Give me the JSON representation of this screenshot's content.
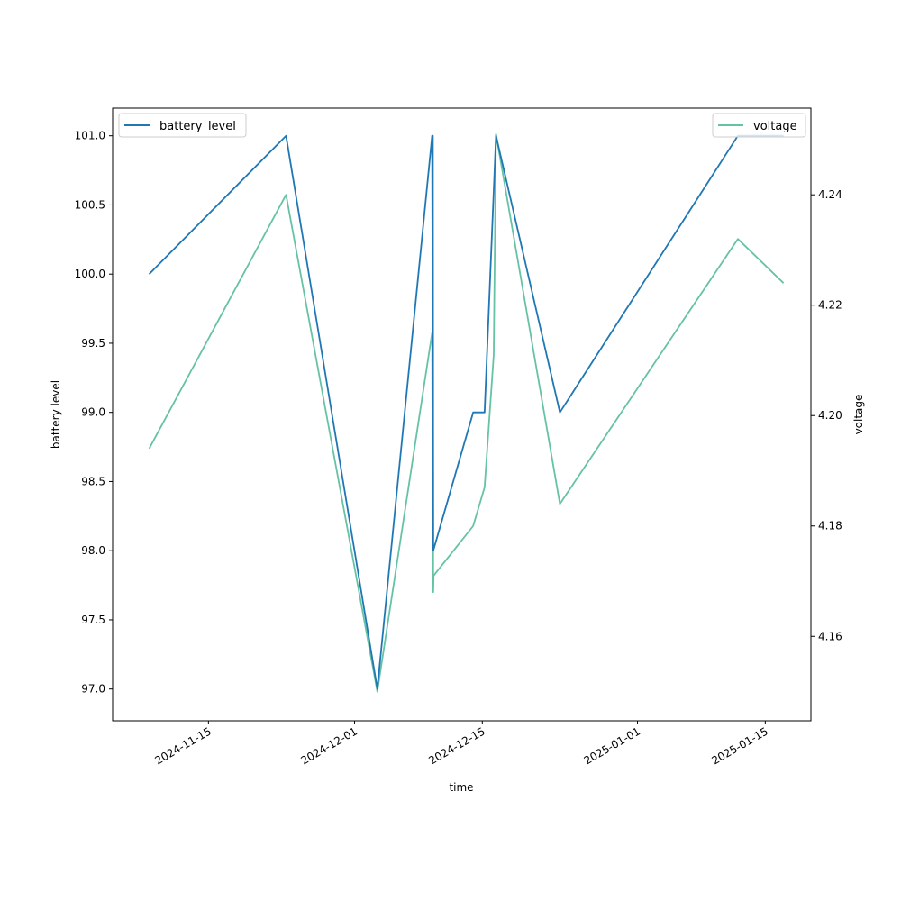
{
  "chart_data": {
    "type": "line",
    "title": "",
    "xlabel": "time",
    "ylabel_left": "battery level",
    "ylabel_right": "voltage",
    "x_tick_labels": [
      "2024-11-15",
      "2024-12-01",
      "2024-12-15",
      "2025-01-01",
      "2025-01-15"
    ],
    "x_ticks": [
      "2024-11-15",
      "2024-12-01",
      "2024-12-15",
      "2025-01-01",
      "2025-01-15"
    ],
    "xlim": [
      "2024-11-04T12:00",
      "2025-01-20T00:00"
    ],
    "ylim_left": [
      96.77,
      101.2
    ],
    "ylim_right": [
      4.1447,
      4.2557
    ],
    "y_ticks_left": [
      97.0,
      97.5,
      98.0,
      98.5,
      99.0,
      99.5,
      100.0,
      100.5,
      101.0
    ],
    "y_tick_labels_left": [
      "97.0",
      "97.5",
      "98.0",
      "98.5",
      "99.0",
      "99.5",
      "100.0",
      "100.5",
      "101.0"
    ],
    "y_ticks_right": [
      4.16,
      4.18,
      4.2,
      4.22,
      4.24
    ],
    "y_tick_labels_right": [
      "4.16",
      "4.18",
      "4.20",
      "4.22",
      "4.24"
    ],
    "series": [
      {
        "name": "battery_level",
        "axis": "left",
        "color": "#1f77b4",
        "points": [
          [
            "2024-11-08T12:00",
            100.0
          ],
          [
            "2024-11-23T12:00",
            101.0
          ],
          [
            "2024-12-03T12:00",
            97.0
          ],
          [
            "2024-12-09T12:00",
            101.0
          ],
          [
            "2024-12-09T13:00",
            100.0
          ],
          [
            "2024-12-09T14:00",
            101.0
          ],
          [
            "2024-12-09T15:00",
            98.0
          ],
          [
            "2024-12-14T00:00",
            99.0
          ],
          [
            "2024-12-15T06:00",
            99.0
          ],
          [
            "2024-12-16T12:00",
            101.0
          ],
          [
            "2024-12-23T12:00",
            99.0
          ],
          [
            "2025-01-12T00:00",
            101.0
          ],
          [
            "2025-01-17T00:00",
            101.0
          ]
        ]
      },
      {
        "name": "voltage",
        "axis": "right",
        "color": "#66c2a5",
        "points": [
          [
            "2024-11-08T12:00",
            4.194
          ],
          [
            "2024-11-23T12:00",
            4.24
          ],
          [
            "2024-12-03T12:00",
            4.15
          ],
          [
            "2024-12-09T12:00",
            4.215
          ],
          [
            "2024-12-09T13:00",
            4.195
          ],
          [
            "2024-12-09T14:00",
            4.22
          ],
          [
            "2024-12-09T15:00",
            4.168
          ],
          [
            "2024-12-09T16:00",
            4.171
          ],
          [
            "2024-12-14T00:00",
            4.18
          ],
          [
            "2024-12-15T06:00",
            4.187
          ],
          [
            "2024-12-16T06:00",
            4.211
          ],
          [
            "2024-12-16T12:00",
            4.251
          ],
          [
            "2024-12-23T12:00",
            4.184
          ],
          [
            "2025-01-12T00:00",
            4.232
          ],
          [
            "2025-01-17T00:00",
            4.224
          ]
        ]
      }
    ],
    "legend_left": {
      "label": "battery_level",
      "placement": "top-left"
    },
    "legend_right": {
      "label": "voltage",
      "placement": "top-right"
    },
    "grid": false
  }
}
